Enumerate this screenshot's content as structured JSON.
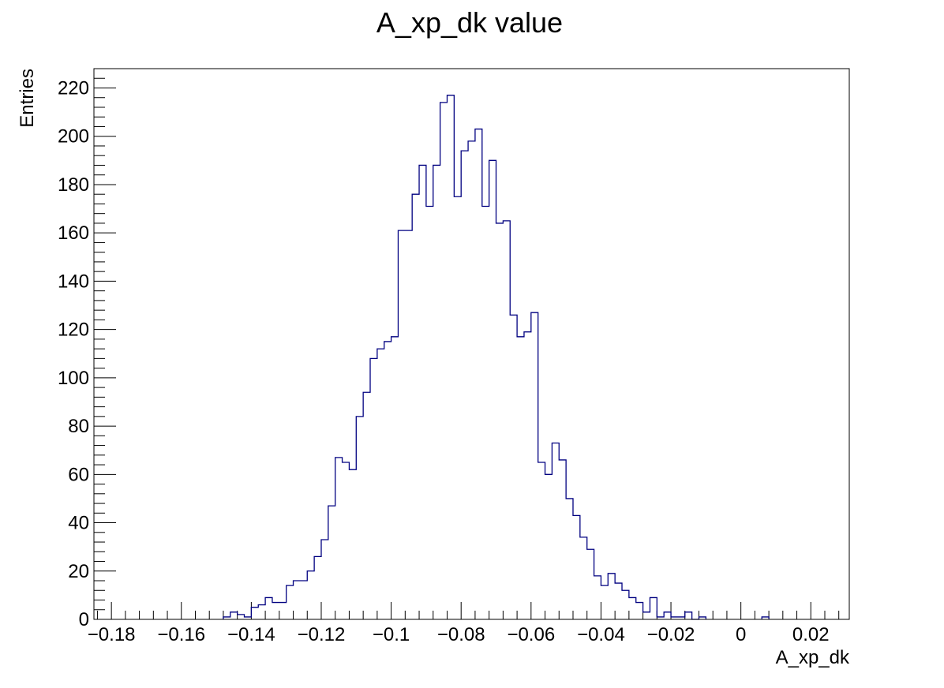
{
  "chart_data": {
    "type": "histogram",
    "title": "A_xp_dk value",
    "xlabel": "A_xp_dk",
    "ylabel": "Entries",
    "xlim": [
      -0.185,
      0.031
    ],
    "ylim": [
      0,
      228
    ],
    "bin_width": 0.002,
    "x_tick_labels": [
      {
        "value": -0.18,
        "label": "−0.18"
      },
      {
        "value": -0.16,
        "label": "−0.16"
      },
      {
        "value": -0.14,
        "label": "−0.14"
      },
      {
        "value": -0.12,
        "label": "−0.12"
      },
      {
        "value": -0.1,
        "label": "−0.1"
      },
      {
        "value": -0.08,
        "label": "−0.08"
      },
      {
        "value": -0.06,
        "label": "−0.06"
      },
      {
        "value": -0.04,
        "label": "−0.04"
      },
      {
        "value": -0.02,
        "label": "−0.02"
      },
      {
        "value": 0,
        "label": "0"
      },
      {
        "value": 0.02,
        "label": "0.02"
      }
    ],
    "y_tick_labels": [
      {
        "value": 0,
        "label": "0"
      },
      {
        "value": 20,
        "label": "20"
      },
      {
        "value": 40,
        "label": "40"
      },
      {
        "value": 60,
        "label": "60"
      },
      {
        "value": 80,
        "label": "80"
      },
      {
        "value": 100,
        "label": "100"
      },
      {
        "value": 120,
        "label": "120"
      },
      {
        "value": 140,
        "label": "140"
      },
      {
        "value": 160,
        "label": "160"
      },
      {
        "value": 180,
        "label": "180"
      },
      {
        "value": 200,
        "label": "200"
      },
      {
        "value": 220,
        "label": "220"
      }
    ],
    "bins": [
      {
        "x": -0.148,
        "y": 1
      },
      {
        "x": -0.146,
        "y": 3
      },
      {
        "x": -0.144,
        "y": 2
      },
      {
        "x": -0.142,
        "y": 1
      },
      {
        "x": -0.14,
        "y": 5
      },
      {
        "x": -0.138,
        "y": 6
      },
      {
        "x": -0.136,
        "y": 9
      },
      {
        "x": -0.134,
        "y": 7
      },
      {
        "x": -0.132,
        "y": 7
      },
      {
        "x": -0.13,
        "y": 14
      },
      {
        "x": -0.128,
        "y": 16
      },
      {
        "x": -0.126,
        "y": 16
      },
      {
        "x": -0.124,
        "y": 20
      },
      {
        "x": -0.122,
        "y": 26
      },
      {
        "x": -0.12,
        "y": 33
      },
      {
        "x": -0.118,
        "y": 47
      },
      {
        "x": -0.116,
        "y": 67
      },
      {
        "x": -0.114,
        "y": 65
      },
      {
        "x": -0.112,
        "y": 62
      },
      {
        "x": -0.11,
        "y": 84
      },
      {
        "x": -0.108,
        "y": 94
      },
      {
        "x": -0.106,
        "y": 108
      },
      {
        "x": -0.104,
        "y": 112
      },
      {
        "x": -0.102,
        "y": 115
      },
      {
        "x": -0.1,
        "y": 117
      },
      {
        "x": -0.098,
        "y": 161
      },
      {
        "x": -0.096,
        "y": 161
      },
      {
        "x": -0.094,
        "y": 176
      },
      {
        "x": -0.092,
        "y": 188
      },
      {
        "x": -0.09,
        "y": 171
      },
      {
        "x": -0.088,
        "y": 188
      },
      {
        "x": -0.086,
        "y": 214
      },
      {
        "x": -0.084,
        "y": 217
      },
      {
        "x": -0.082,
        "y": 175
      },
      {
        "x": -0.08,
        "y": 194
      },
      {
        "x": -0.078,
        "y": 198
      },
      {
        "x": -0.076,
        "y": 203
      },
      {
        "x": -0.074,
        "y": 171
      },
      {
        "x": -0.072,
        "y": 190
      },
      {
        "x": -0.07,
        "y": 164
      },
      {
        "x": -0.068,
        "y": 165
      },
      {
        "x": -0.066,
        "y": 126
      },
      {
        "x": -0.064,
        "y": 117
      },
      {
        "x": -0.062,
        "y": 119
      },
      {
        "x": -0.06,
        "y": 127
      },
      {
        "x": -0.058,
        "y": 65
      },
      {
        "x": -0.056,
        "y": 60
      },
      {
        "x": -0.054,
        "y": 73
      },
      {
        "x": -0.052,
        "y": 66
      },
      {
        "x": -0.05,
        "y": 50
      },
      {
        "x": -0.048,
        "y": 43
      },
      {
        "x": -0.046,
        "y": 34
      },
      {
        "x": -0.044,
        "y": 29
      },
      {
        "x": -0.042,
        "y": 18
      },
      {
        "x": -0.04,
        "y": 14
      },
      {
        "x": -0.038,
        "y": 19
      },
      {
        "x": -0.036,
        "y": 15
      },
      {
        "x": -0.034,
        "y": 12
      },
      {
        "x": -0.032,
        "y": 9
      },
      {
        "x": -0.03,
        "y": 7
      },
      {
        "x": -0.028,
        "y": 3
      },
      {
        "x": -0.026,
        "y": 9
      },
      {
        "x": -0.024,
        "y": 1
      },
      {
        "x": -0.022,
        "y": 3
      },
      {
        "x": -0.02,
        "y": 1
      },
      {
        "x": -0.018,
        "y": 1
      },
      {
        "x": -0.016,
        "y": 3
      },
      {
        "x": -0.014,
        "y": 0
      },
      {
        "x": -0.012,
        "y": 1
      },
      {
        "x": 0.006,
        "y": 1
      }
    ],
    "line_color": "#000080",
    "grid": false,
    "legend": "none"
  }
}
